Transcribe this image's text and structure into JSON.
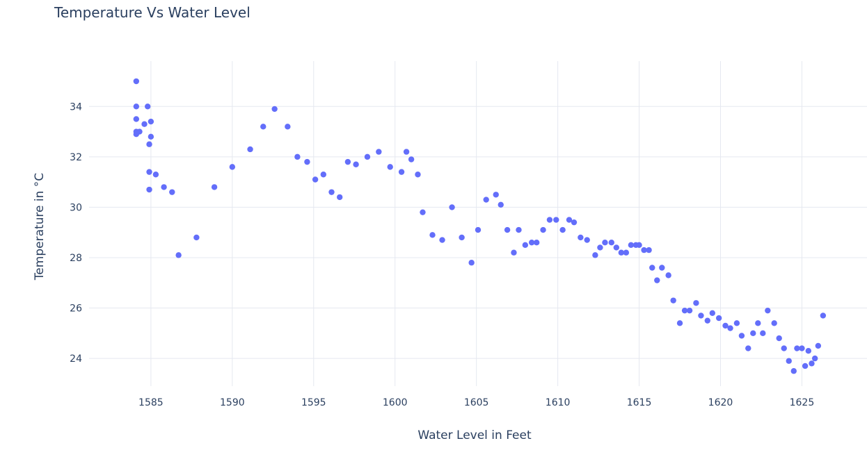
{
  "chart_data": {
    "type": "scatter",
    "title": "Temperature Vs Water Level",
    "xlabel": "Water Level in Feet",
    "ylabel": "Temperature in °C",
    "xlim": [
      1581.2,
      1629.0
    ],
    "ylim": [
      22.9,
      35.8
    ],
    "x_ticks": [
      1585,
      1590,
      1595,
      1600,
      1605,
      1610,
      1615,
      1620,
      1625
    ],
    "y_ticks": [
      24,
      26,
      28,
      30,
      32,
      34
    ],
    "grid": true,
    "marker_color": "#636efa",
    "points": [
      [
        1584.1,
        35.0
      ],
      [
        1584.1,
        34.0
      ],
      [
        1584.1,
        33.5
      ],
      [
        1584.1,
        33.0
      ],
      [
        1584.1,
        32.9
      ],
      [
        1584.3,
        33.0
      ],
      [
        1584.6,
        33.3
      ],
      [
        1584.8,
        34.0
      ],
      [
        1585.0,
        33.4
      ],
      [
        1585.0,
        32.8
      ],
      [
        1584.9,
        32.5
      ],
      [
        1584.9,
        31.4
      ],
      [
        1585.3,
        31.3
      ],
      [
        1584.9,
        30.7
      ],
      [
        1585.8,
        30.8
      ],
      [
        1586.3,
        30.6
      ],
      [
        1586.7,
        28.1
      ],
      [
        1587.8,
        28.8
      ],
      [
        1588.9,
        30.8
      ],
      [
        1590.0,
        31.6
      ],
      [
        1591.1,
        32.3
      ],
      [
        1591.9,
        33.2
      ],
      [
        1592.6,
        33.9
      ],
      [
        1593.4,
        33.2
      ],
      [
        1594.0,
        32.0
      ],
      [
        1594.6,
        31.8
      ],
      [
        1595.1,
        31.1
      ],
      [
        1595.6,
        31.3
      ],
      [
        1596.1,
        30.6
      ],
      [
        1596.6,
        30.4
      ],
      [
        1597.1,
        31.8
      ],
      [
        1597.6,
        31.7
      ],
      [
        1598.3,
        32.0
      ],
      [
        1599.0,
        32.2
      ],
      [
        1599.7,
        31.6
      ],
      [
        1600.4,
        31.4
      ],
      [
        1600.7,
        32.2
      ],
      [
        1601.0,
        31.9
      ],
      [
        1601.4,
        31.3
      ],
      [
        1601.7,
        29.8
      ],
      [
        1602.3,
        28.9
      ],
      [
        1602.9,
        28.7
      ],
      [
        1603.5,
        30.0
      ],
      [
        1604.1,
        28.8
      ],
      [
        1604.7,
        27.8
      ],
      [
        1605.1,
        29.1
      ],
      [
        1605.6,
        30.3
      ],
      [
        1606.2,
        30.5
      ],
      [
        1606.5,
        30.1
      ],
      [
        1606.9,
        29.1
      ],
      [
        1607.3,
        28.2
      ],
      [
        1607.6,
        29.1
      ],
      [
        1608.0,
        28.5
      ],
      [
        1608.4,
        28.6
      ],
      [
        1608.7,
        28.6
      ],
      [
        1609.1,
        29.1
      ],
      [
        1609.5,
        29.5
      ],
      [
        1609.9,
        29.5
      ],
      [
        1610.3,
        29.1
      ],
      [
        1610.7,
        29.5
      ],
      [
        1611.0,
        29.4
      ],
      [
        1611.4,
        28.8
      ],
      [
        1611.8,
        28.7
      ],
      [
        1612.3,
        28.1
      ],
      [
        1612.6,
        28.4
      ],
      [
        1612.9,
        28.6
      ],
      [
        1613.3,
        28.6
      ],
      [
        1613.6,
        28.4
      ],
      [
        1613.9,
        28.2
      ],
      [
        1614.2,
        28.2
      ],
      [
        1614.5,
        28.5
      ],
      [
        1614.8,
        28.5
      ],
      [
        1615.0,
        28.5
      ],
      [
        1615.3,
        28.3
      ],
      [
        1615.6,
        28.3
      ],
      [
        1615.8,
        27.6
      ],
      [
        1616.1,
        27.1
      ],
      [
        1616.4,
        27.6
      ],
      [
        1616.8,
        27.3
      ],
      [
        1617.1,
        26.3
      ],
      [
        1617.5,
        25.4
      ],
      [
        1617.8,
        25.9
      ],
      [
        1618.1,
        25.9
      ],
      [
        1618.5,
        26.2
      ],
      [
        1618.8,
        25.7
      ],
      [
        1619.2,
        25.5
      ],
      [
        1619.5,
        25.8
      ],
      [
        1619.9,
        25.6
      ],
      [
        1620.3,
        25.3
      ],
      [
        1620.6,
        25.2
      ],
      [
        1621.0,
        25.4
      ],
      [
        1621.3,
        24.9
      ],
      [
        1621.7,
        24.4
      ],
      [
        1622.0,
        25.0
      ],
      [
        1622.3,
        25.4
      ],
      [
        1622.6,
        25.0
      ],
      [
        1622.9,
        25.9
      ],
      [
        1623.3,
        25.4
      ],
      [
        1623.6,
        24.8
      ],
      [
        1623.9,
        24.4
      ],
      [
        1624.2,
        23.9
      ],
      [
        1624.5,
        23.5
      ],
      [
        1624.7,
        24.4
      ],
      [
        1625.0,
        24.4
      ],
      [
        1625.2,
        23.7
      ],
      [
        1625.4,
        24.3
      ],
      [
        1625.6,
        23.8
      ],
      [
        1625.8,
        24.0
      ],
      [
        1626.0,
        24.5
      ],
      [
        1626.3,
        25.7
      ]
    ]
  }
}
